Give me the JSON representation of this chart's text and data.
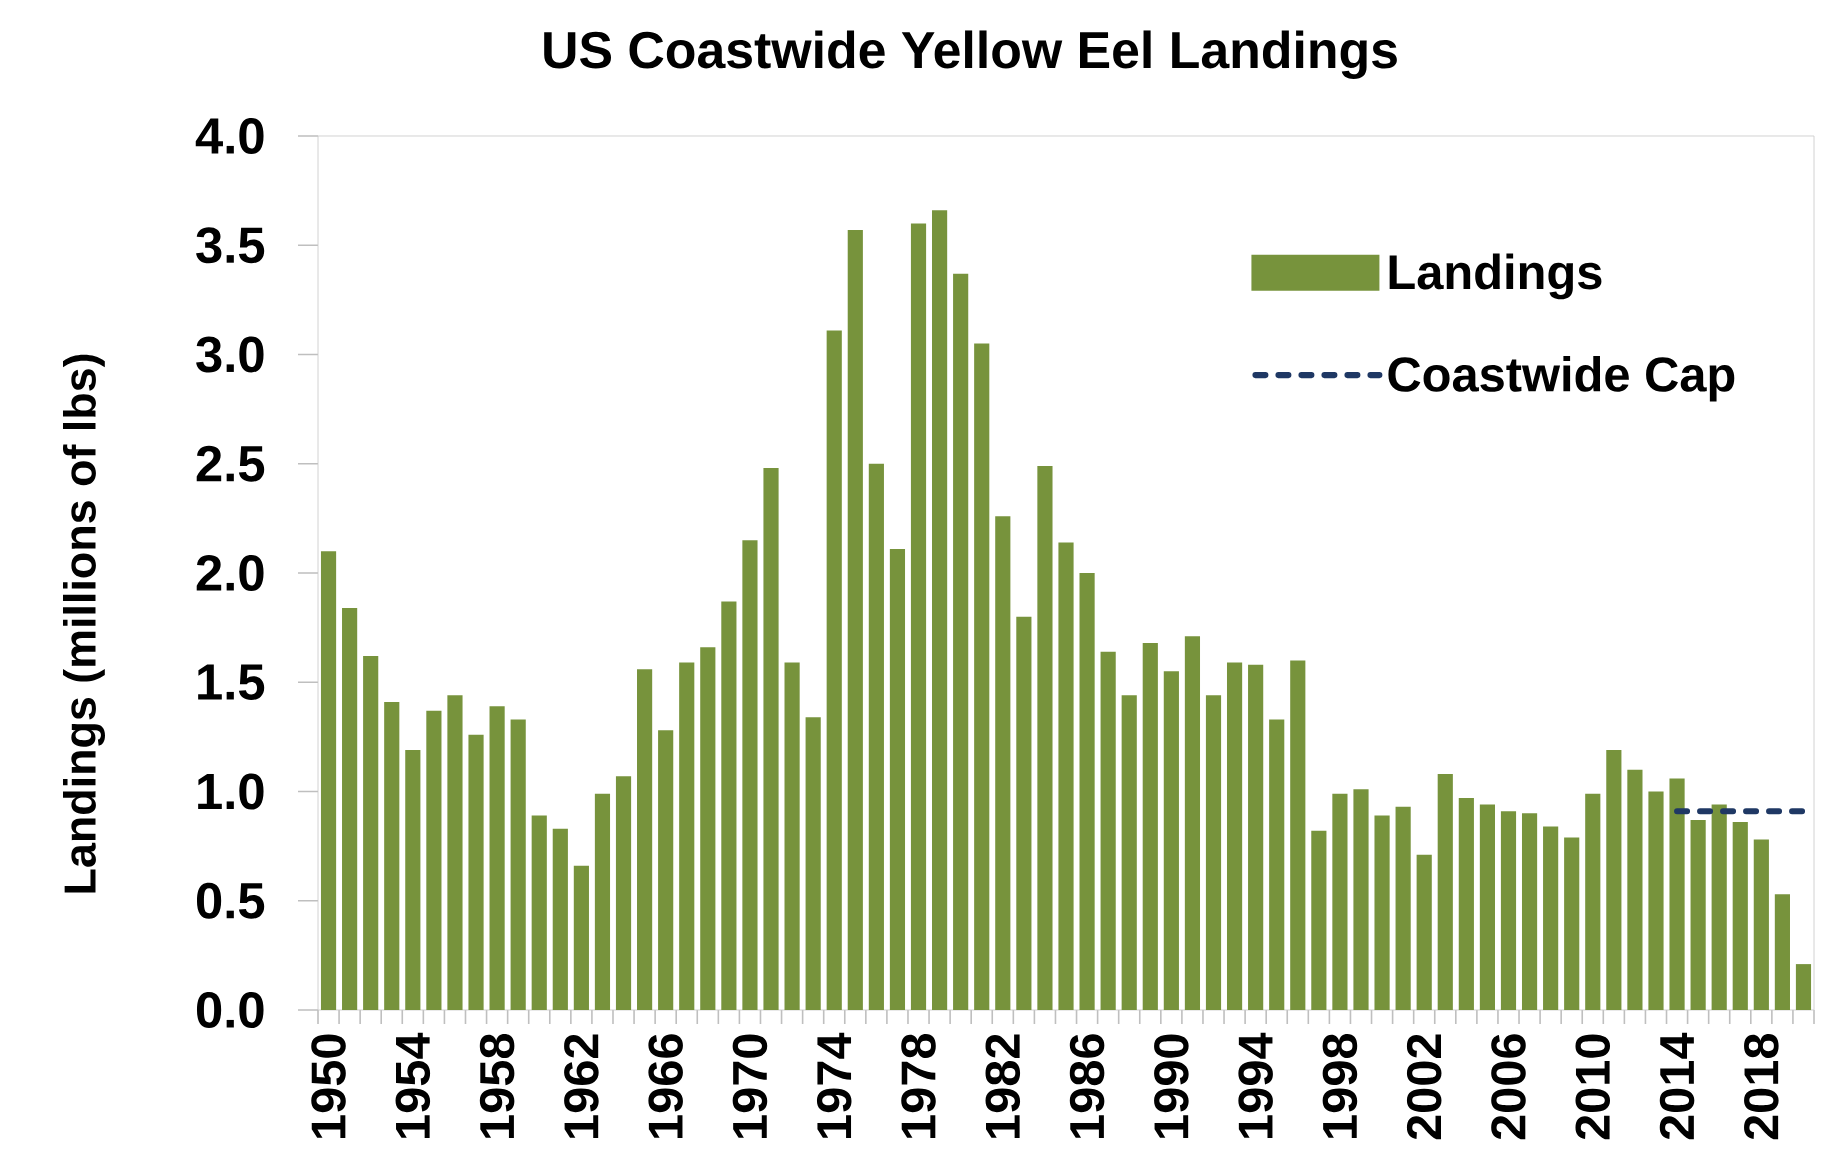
{
  "chart_data": {
    "type": "bar",
    "title": "US Coastwide Yellow Eel Landings",
    "ylabel": "Landings (millions of lbs)",
    "categories": [
      "1950",
      null,
      null,
      null,
      "1954",
      null,
      null,
      null,
      "1958",
      null,
      null,
      null,
      "1962",
      null,
      null,
      null,
      "1966",
      null,
      null,
      null,
      "1970",
      null,
      null,
      null,
      "1974",
      null,
      null,
      null,
      "1978",
      null,
      null,
      null,
      "1982",
      null,
      null,
      null,
      "1986",
      null,
      null,
      null,
      "1990",
      null,
      null,
      null,
      "1994",
      null,
      null,
      null,
      "1998",
      null,
      null,
      null,
      "2002",
      null,
      null,
      null,
      "2006",
      null,
      null,
      null,
      "2010",
      null,
      null,
      null,
      "2014",
      null,
      null,
      null,
      "2018",
      null,
      null
    ],
    "series": [
      {
        "name": "Landings",
        "color": "#77933c",
        "values": [
          2.1,
          1.84,
          1.62,
          1.41,
          1.19,
          1.37,
          1.44,
          1.26,
          1.39,
          1.33,
          0.89,
          0.83,
          0.66,
          0.99,
          1.07,
          1.56,
          1.28,
          1.59,
          1.66,
          1.87,
          2.15,
          2.48,
          1.59,
          1.34,
          3.11,
          3.57,
          2.5,
          2.11,
          3.6,
          3.66,
          3.37,
          3.05,
          2.26,
          1.8,
          2.49,
          2.14,
          2.0,
          1.64,
          1.44,
          1.68,
          1.55,
          1.71,
          1.44,
          1.59,
          1.58,
          1.33,
          1.6,
          0.82,
          0.99,
          1.01,
          0.89,
          0.93,
          0.71,
          1.08,
          0.97,
          0.94,
          0.91,
          0.9,
          0.84,
          0.79,
          0.99,
          1.19,
          1.1,
          1.0,
          1.06,
          0.87,
          0.94,
          0.86,
          0.78,
          0.53,
          0.21
        ]
      },
      {
        "name": "Coastwide Cap",
        "type": "line",
        "color": "#1f3864",
        "line_style": "dashed",
        "values": [
          null,
          null,
          null,
          null,
          null,
          null,
          null,
          null,
          null,
          null,
          null,
          null,
          null,
          null,
          null,
          null,
          null,
          null,
          null,
          null,
          null,
          null,
          null,
          null,
          null,
          null,
          null,
          null,
          null,
          null,
          null,
          null,
          null,
          null,
          null,
          null,
          null,
          null,
          null,
          null,
          null,
          null,
          null,
          null,
          null,
          null,
          null,
          null,
          null,
          null,
          null,
          null,
          null,
          null,
          null,
          null,
          null,
          null,
          null,
          null,
          null,
          null,
          null,
          null,
          0.91,
          0.91,
          0.91,
          0.91,
          0.91,
          0.91,
          0.91
        ]
      }
    ],
    "ylim": [
      0,
      4
    ],
    "yticks": [
      {
        "value": 0,
        "label": "0.0"
      },
      0.5,
      {
        "value": 1,
        "label": "1.0"
      },
      1.5,
      {
        "value": 2,
        "label": "2.0"
      },
      2.5,
      {
        "value": 3,
        "label": "3.0"
      },
      3.5,
      {
        "value": 4,
        "label": "4.0"
      }
    ],
    "legend": "top right"
  }
}
